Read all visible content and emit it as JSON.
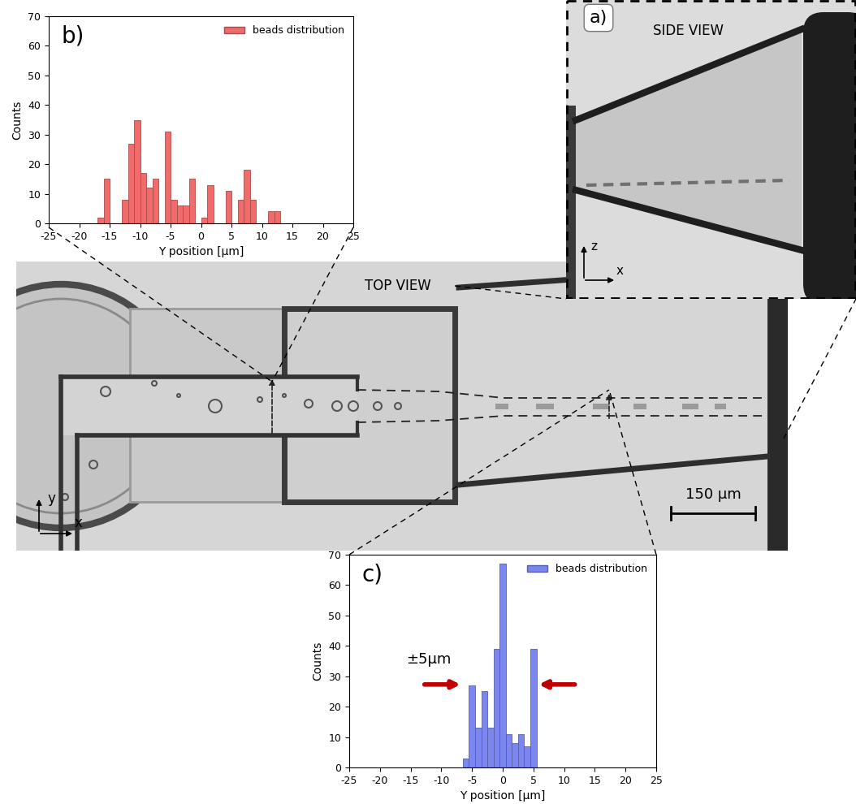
{
  "chart_data": [
    {
      "type": "histogram",
      "panel_label": "b)",
      "xlabel": "Y position [µm]",
      "ylabel": "Counts",
      "bins": [
        -17,
        -16,
        -15,
        -14,
        -13,
        -12,
        -11,
        -10,
        -9,
        -8,
        -7,
        -6,
        -5,
        -4,
        -3,
        -2,
        -1,
        0,
        1,
        2,
        3,
        4,
        5,
        6,
        7,
        8,
        9,
        10,
        11,
        12,
        13
      ],
      "series": [
        {
          "name": "beads distribution",
          "color": "#f26b6b",
          "counts": [
            2,
            15,
            0,
            0,
            8,
            27,
            35,
            17,
            12,
            15,
            0,
            31,
            8,
            6,
            6,
            15,
            0,
            2,
            13,
            0,
            0,
            11,
            0,
            8,
            18,
            8,
            0,
            0,
            4,
            4
          ]
        }
      ],
      "xlim": [
        -25,
        25
      ],
      "xticks": [
        -25,
        -20,
        -15,
        -10,
        -5,
        0,
        5,
        10,
        15,
        20,
        25
      ],
      "ylim": [
        0,
        70
      ],
      "yticks": [
        0,
        10,
        20,
        30,
        40,
        50,
        60,
        70
      ],
      "legend": "upper right"
    },
    {
      "type": "histogram",
      "panel_label": "c)",
      "xlabel": "Y position [µm]",
      "ylabel": "Counts",
      "bins": [
        -6.5,
        -5.5,
        -4.5,
        -3.5,
        -2.5,
        -1.5,
        -0.5,
        0.5,
        1.5,
        2.5,
        3.5,
        4.5,
        5.5
      ],
      "series": [
        {
          "name": "beads distribution",
          "color": "#7b86f0",
          "counts": [
            3,
            27,
            13,
            25,
            13,
            39,
            67,
            11,
            8,
            11,
            7,
            39
          ]
        }
      ],
      "xlim": [
        -25,
        25
      ],
      "xticks": [
        -25,
        -20,
        -15,
        -10,
        -5,
        0,
        5,
        10,
        15,
        20,
        25
      ],
      "ylim": [
        0,
        70
      ],
      "yticks": [
        0,
        10,
        20,
        30,
        40,
        50,
        60,
        70
      ],
      "legend": "upper right",
      "annotation": "±5µm"
    }
  ],
  "image_panels": {
    "top_view": {
      "title": "TOP VIEW",
      "scale_bar": "150 µm",
      "axis_labels": [
        "y",
        "x"
      ]
    },
    "side_view": {
      "panel_label": "a)",
      "title": "SIDE VIEW",
      "axis_labels": [
        "z",
        "x"
      ]
    }
  }
}
